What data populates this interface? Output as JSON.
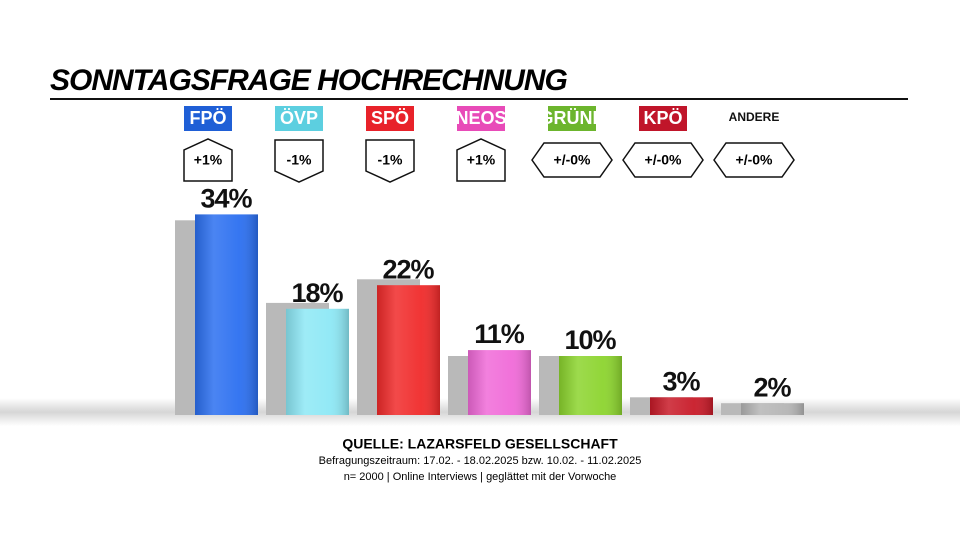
{
  "chart_data": {
    "type": "bar",
    "title": "SONNTAGSFRAGE HOCHRECHNUNG",
    "categories": [
      "FPÖ",
      "ÖVP",
      "SPÖ",
      "NEOS",
      "GRÜNE",
      "KPÖ",
      "ANDERE"
    ],
    "category_colors": [
      "#1f5fd6",
      "#5ccfe0",
      "#e8222a",
      "#e84bb8",
      "#6cb52d",
      "#c0152a",
      null
    ],
    "change_values": [
      1,
      -1,
      -1,
      1,
      0,
      0,
      0
    ],
    "change_labels": [
      "+1%",
      "-1%",
      "-1%",
      "+1%",
      "+/-0%",
      "+/-0%",
      "+/-0%"
    ],
    "series": [
      {
        "color": "#b9b9b9",
        "values": [
          33,
          19,
          23,
          10,
          10,
          3,
          2
        ]
      },
      {
        "colors": [
          "#2b6ff0",
          "#8de8f5",
          "#f02a2a",
          "#f06ad8",
          "#8cd42e",
          "#c81a28",
          "#b5b5b5"
        ],
        "values": [
          34,
          18,
          22,
          11,
          10,
          3,
          2
        ],
        "value_labels": [
          "34%",
          "18%",
          "22%",
          "11%",
          "10%",
          "3%",
          "2%"
        ]
      }
    ],
    "ylim": [
      0,
      40
    ],
    "source": "QUELLE: LAZARSFELD GESELLSCHAFT",
    "period": "Befragungszeitraum:  17.02. - 18.02.2025  bzw.  10.02. - 11.02.2025",
    "sample": "n= 2000 | Online Interviews | geglättet mit der Vorwoche"
  }
}
